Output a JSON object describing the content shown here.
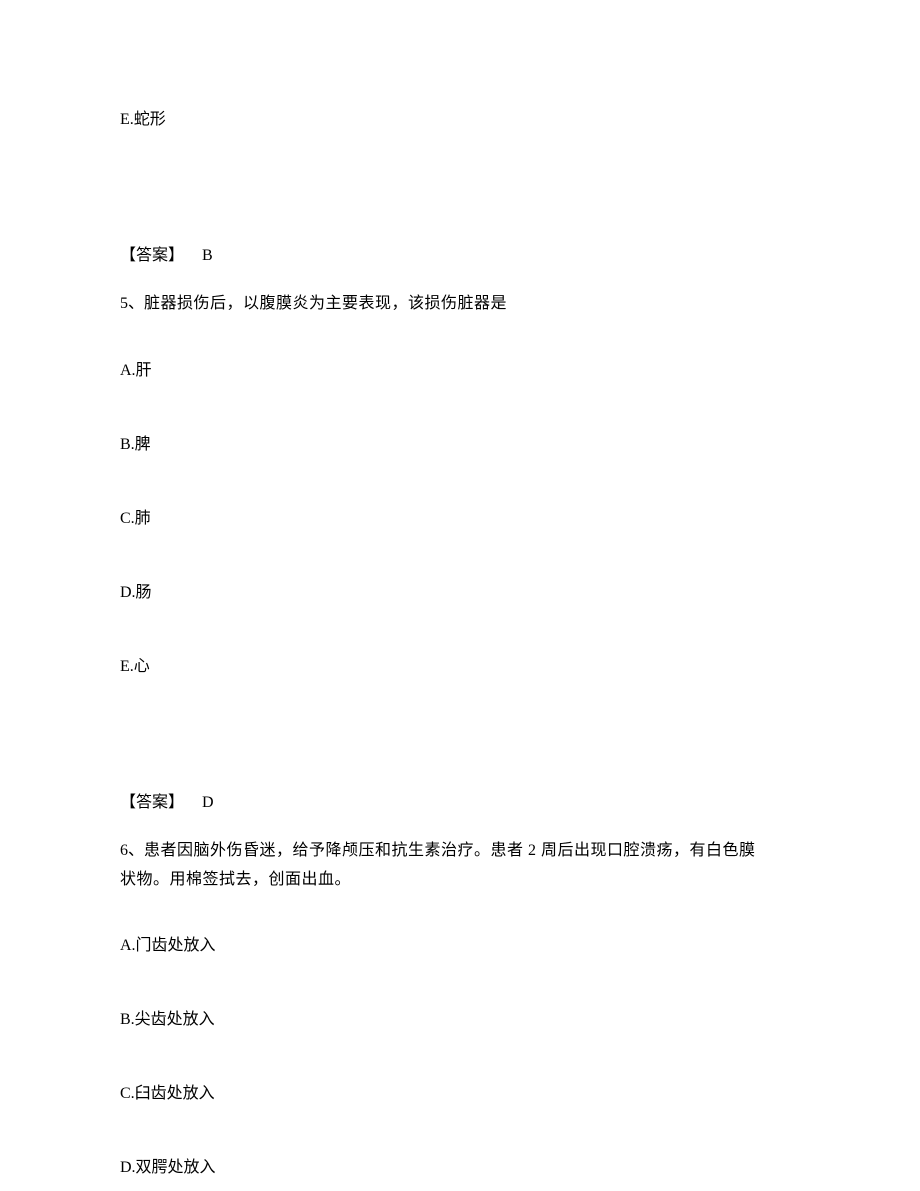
{
  "prev_option_e": "E.蛇形",
  "prev_answer_label": "【答案】",
  "prev_answer_value": "B",
  "q5": {
    "number": "5、",
    "text": "脏器损伤后，以腹膜炎为主要表现，该损伤脏器是",
    "options": {
      "a": "A.肝",
      "b": "B.脾",
      "c": "C.肺",
      "d": "D.肠",
      "e": "E.心"
    },
    "answer_label": "【答案】",
    "answer_value": "D"
  },
  "q6": {
    "number": "6、",
    "text_line1": "患者因脑外伤昏迷，给予降颅压和抗生素治疗。患者 2 周后出现口腔溃疡，有白色膜",
    "text_line2": "状物。用棉签拭去，创面出血。",
    "options": {
      "a": "A.门齿处放入",
      "b": "B.尖齿处放入",
      "c": "C.臼齿处放入",
      "d": "D.双腭处放入"
    }
  }
}
